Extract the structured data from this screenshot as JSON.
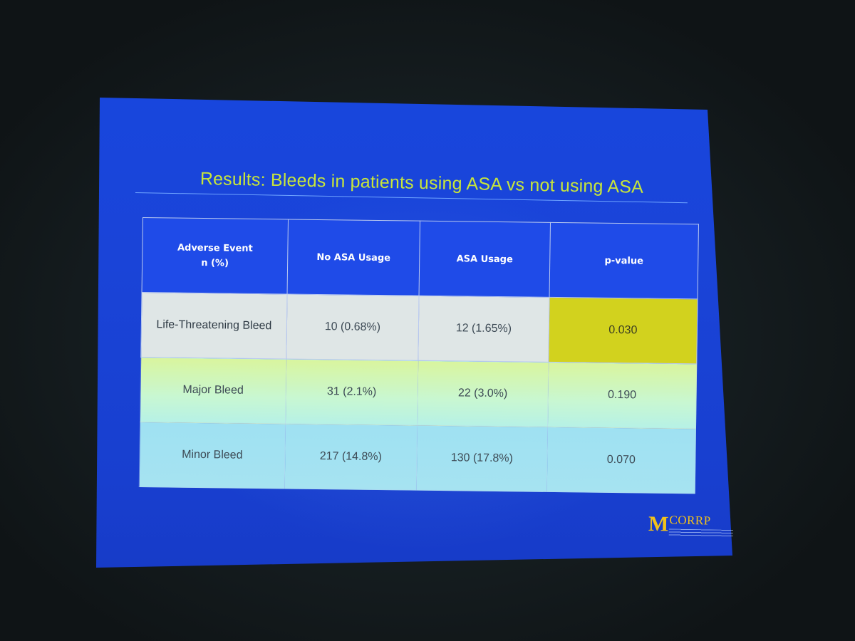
{
  "slide": {
    "title": "Results: Bleeds in patients using ASA vs not using ASA"
  },
  "table": {
    "header": {
      "col1_line1": "Adverse Event",
      "col1_line2": "n (%)",
      "col2": "No ASA Usage",
      "col3": "ASA Usage",
      "col4": "p-value"
    },
    "rows": [
      {
        "event": "Life-Threatening Bleed",
        "no_asa": "10 (0.68%)",
        "asa": "12 (1.65%)",
        "p_value": "0.030",
        "highlighted": true
      },
      {
        "event": "Major Bleed",
        "no_asa": "31 (2.1%)",
        "asa": "22 (3.0%)",
        "p_value": "0.190",
        "highlighted": false
      },
      {
        "event": "Minor Bleed",
        "no_asa": "217 (14.8%)",
        "asa": "130 (17.8%)",
        "p_value": "0.070",
        "highlighted": false
      }
    ]
  },
  "logo": {
    "mark": "M",
    "text": "CORRP"
  },
  "colors": {
    "slide_background": "#1a44d8",
    "title_text": "#c8e63a",
    "header_fill": "#1f4be8",
    "highlight_cell": "#d2d21e",
    "logo_gold": "#f2c21b"
  }
}
